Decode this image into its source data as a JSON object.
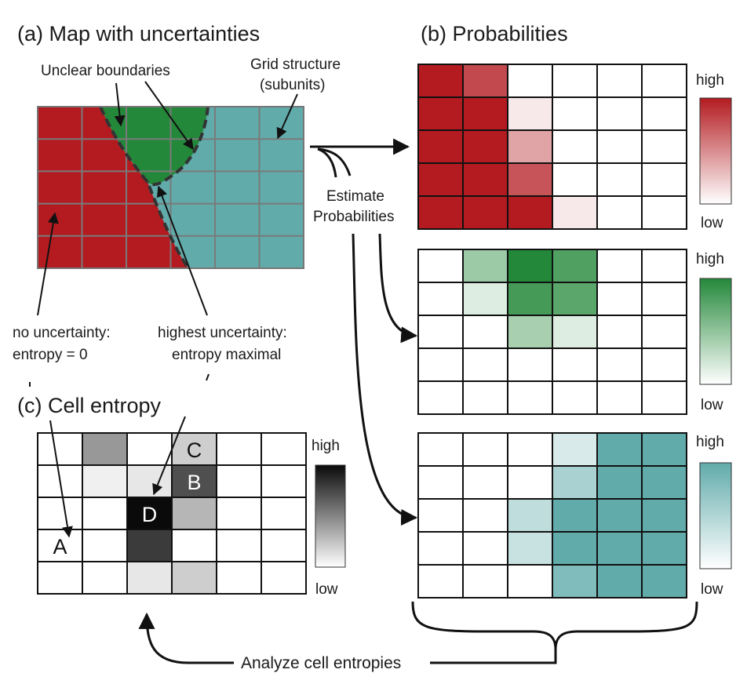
{
  "panel_a": {
    "title": "(a) Map with uncertainties",
    "label_unclear": "Unclear boundaries",
    "label_grid_1": "Grid structure",
    "label_grid_2": "(subunits)",
    "label_no_unc_1": "no uncertainty:",
    "label_no_unc_2": "entropy = 0",
    "label_high_unc_1": "highest uncertainty:",
    "label_high_unc_2": "entropy maximal",
    "colors": {
      "red": "#b31b20",
      "green": "#24883a",
      "teal": "#62abab",
      "grid": "#7a7a7a"
    }
  },
  "panel_b": {
    "title": "(b) Probabilities",
    "estimate_1": "Estimate",
    "estimate_2": "Probabilities",
    "legend_high": "high",
    "legend_low": "low",
    "colors": {
      "red": "#b31b20",
      "green": "#24883a",
      "teal": "#62abab"
    },
    "grids": [
      {
        "name": "red",
        "values": [
          [
            1.0,
            0.8,
            0,
            0,
            0,
            0
          ],
          [
            1.0,
            1.0,
            0.1,
            0,
            0,
            0
          ],
          [
            1.0,
            1.0,
            0.4,
            0,
            0,
            0
          ],
          [
            1.0,
            1.0,
            0.75,
            0,
            0,
            0
          ],
          [
            1.0,
            1.0,
            1.0,
            0.1,
            0,
            0
          ]
        ]
      },
      {
        "name": "green",
        "values": [
          [
            0,
            0.45,
            1.0,
            0.8,
            0,
            0
          ],
          [
            0,
            0.15,
            0.85,
            0.75,
            0,
            0
          ],
          [
            0,
            0,
            0.4,
            0.15,
            0,
            0
          ],
          [
            0,
            0,
            0,
            0,
            0,
            0
          ],
          [
            0,
            0,
            0,
            0,
            0,
            0
          ]
        ]
      },
      {
        "name": "teal",
        "values": [
          [
            0,
            0,
            0,
            0.25,
            1.0,
            1.0
          ],
          [
            0,
            0,
            0,
            0.55,
            1.0,
            1.0
          ],
          [
            0,
            0,
            0.4,
            1.0,
            1.0,
            1.0
          ],
          [
            0,
            0,
            0.35,
            1.0,
            1.0,
            1.0
          ],
          [
            0,
            0,
            0,
            0.8,
            1.0,
            1.0
          ]
        ]
      }
    ]
  },
  "panel_c": {
    "title": "(c) Cell entropy",
    "legend_high": "high",
    "legend_low": "low",
    "values": [
      [
        0,
        0.42,
        0,
        0.2,
        0,
        0
      ],
      [
        0,
        0.06,
        0.1,
        0.72,
        0,
        0
      ],
      [
        0,
        0,
        1.0,
        0.3,
        0,
        0
      ],
      [
        0,
        0,
        0.8,
        0,
        0,
        0
      ],
      [
        0,
        0,
        0.1,
        0.2,
        0,
        0
      ]
    ],
    "cell_labels": [
      {
        "text": "A",
        "row": 3,
        "col": 0
      },
      {
        "text": "B",
        "row": 1,
        "col": 3
      },
      {
        "text": "C",
        "row": 0,
        "col": 3
      },
      {
        "text": "D",
        "row": 2,
        "col": 2
      }
    ]
  },
  "bottom": {
    "analyze": "Analyze cell entropies"
  }
}
